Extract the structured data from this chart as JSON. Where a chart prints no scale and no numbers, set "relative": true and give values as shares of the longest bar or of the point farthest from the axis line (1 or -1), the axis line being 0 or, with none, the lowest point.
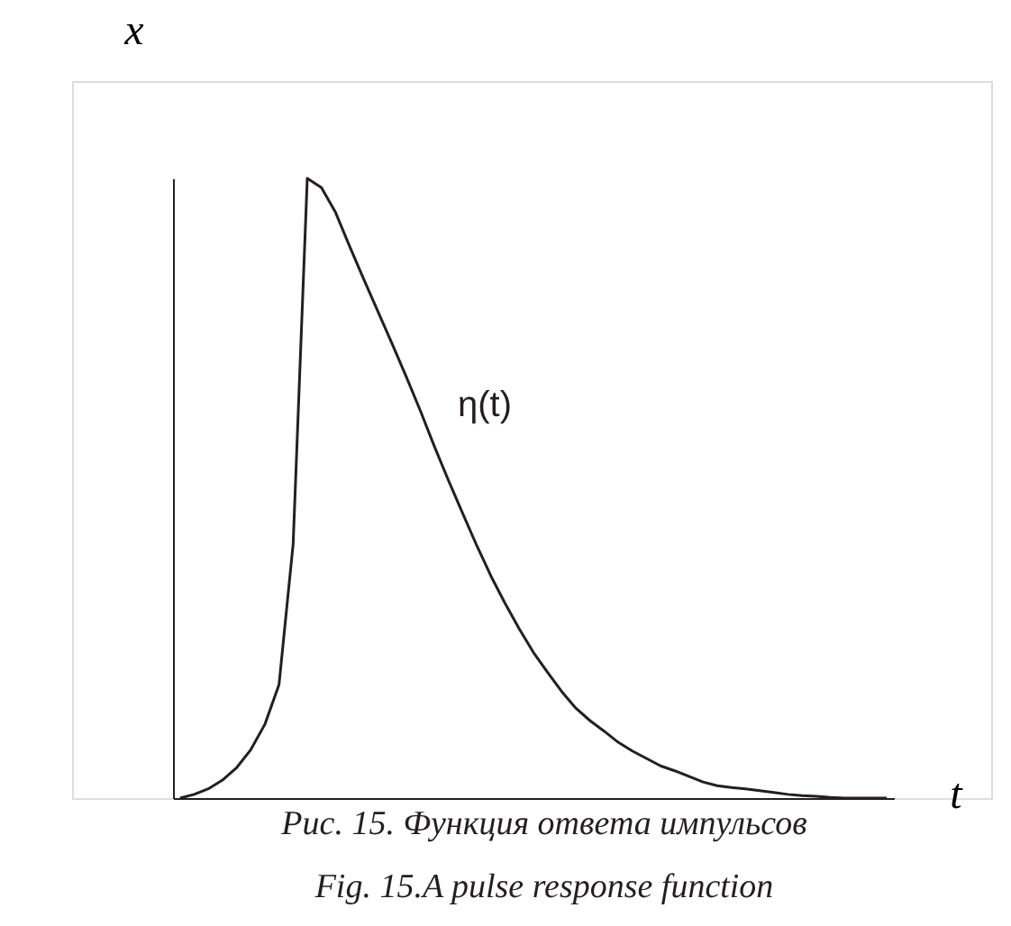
{
  "chart_data": {
    "type": "line",
    "relative": true,
    "xlabel": "t",
    "ylabel": "x",
    "color": "#231f20",
    "categories": [
      null,
      null,
      null,
      null,
      null,
      null,
      null,
      null,
      null,
      null,
      null,
      null,
      null,
      null,
      null,
      null,
      null,
      null,
      null,
      null,
      null,
      null,
      null,
      null,
      null,
      null,
      null,
      null,
      null,
      null,
      null,
      null,
      null,
      null,
      null,
      null,
      null,
      null,
      null,
      null,
      null,
      null,
      null,
      null,
      null,
      null,
      null,
      null,
      null,
      null,
      null
    ],
    "values": [
      0,
      0.006,
      0.015,
      0.029,
      0.049,
      0.078,
      0.119,
      0.183,
      0.41,
      1,
      0.985,
      0.945,
      0.89,
      0.837,
      0.785,
      0.733,
      0.68,
      0.625,
      0.567,
      0.512,
      0.459,
      0.407,
      0.358,
      0.314,
      0.273,
      0.235,
      0.203,
      0.172,
      0.145,
      0.125,
      0.108,
      0.09,
      0.076,
      0.064,
      0.052,
      0.044,
      0.035,
      0.026,
      0.02,
      0.017,
      0.015,
      0.012,
      0.009,
      0.006,
      0.004,
      0.003,
      0.001,
      0,
      0,
      0,
      0
    ],
    "annotations": [
      "η(t)",
      "Рис. 15. Функция ответа импульсов",
      "Fig. 15.A  pulse response function"
    ],
    "grid": false,
    "legend": false,
    "tick_labels": false,
    "marker": "none",
    "line_style": "solid"
  }
}
